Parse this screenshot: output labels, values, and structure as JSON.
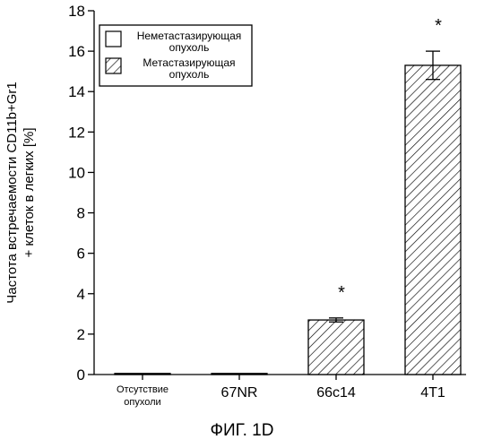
{
  "chart_data": {
    "type": "bar",
    "title": "",
    "xlabel": "",
    "ylabel": [
      "Частота встречаемости CD11b+Gr1",
      "+ клеток в легких [%]"
    ],
    "ylim": [
      0,
      18
    ],
    "yticks": [
      0,
      2,
      4,
      6,
      8,
      10,
      12,
      14,
      16,
      18
    ],
    "categories": [
      [
        "Отсутствие",
        "опухоли"
      ],
      [
        "67NR"
      ],
      [
        "66c14"
      ],
      [
        "4T1"
      ]
    ],
    "values": [
      0.02,
      0.02,
      2.7,
      15.3
    ],
    "errors": [
      0,
      0,
      0.1,
      0.7
    ],
    "bar_style": [
      "plain",
      "plain",
      "hatched",
      "hatched"
    ],
    "significance": [
      "",
      "",
      "*",
      "*"
    ],
    "legend": {
      "placement": "top-left",
      "entries": [
        {
          "label": [
            "Неметастазирующая",
            "опухоль"
          ],
          "style": "plain"
        },
        {
          "label": [
            "Метастазирующая",
            "опухоль"
          ],
          "style": "hatched"
        }
      ]
    },
    "grid": false
  },
  "caption": "ФИГ. 1D"
}
